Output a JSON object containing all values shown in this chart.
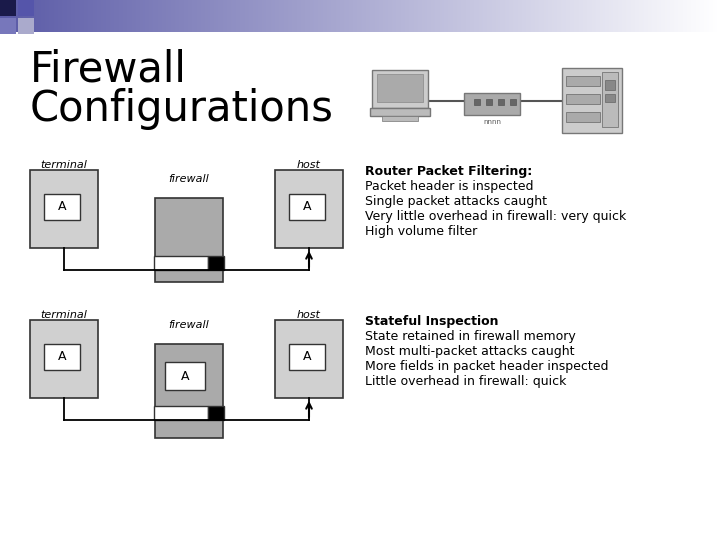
{
  "title_line1": "Firewall",
  "title_line2": "Configurations",
  "title_fontsize": 30,
  "bg_color": "#ffffff",
  "diagram1": {
    "terminal_label": "terminal",
    "firewall_label": "firewall",
    "host_label": "host",
    "section_title": "Router Packet Filtering:",
    "bullets": [
      "Packet header is inspected",
      "Single packet attacks caught",
      "Very little overhead in firewall: very quick",
      "High volume filter"
    ]
  },
  "diagram2": {
    "terminal_label": "terminal",
    "firewall_label": "firewall",
    "host_label": "host",
    "section_title": "Stateful Inspection",
    "bullets": [
      "State retained in firewall memory",
      "Most multi-packet attacks caught",
      "More fields in packet header inspected",
      "Little overhead in firewall: quick"
    ]
  },
  "light_gray": "#d0d0d0",
  "dark_gray": "#aaaaaa",
  "darker_gray": "#999999",
  "label_fs": 8,
  "body_fs": 9,
  "title_fs": 9
}
